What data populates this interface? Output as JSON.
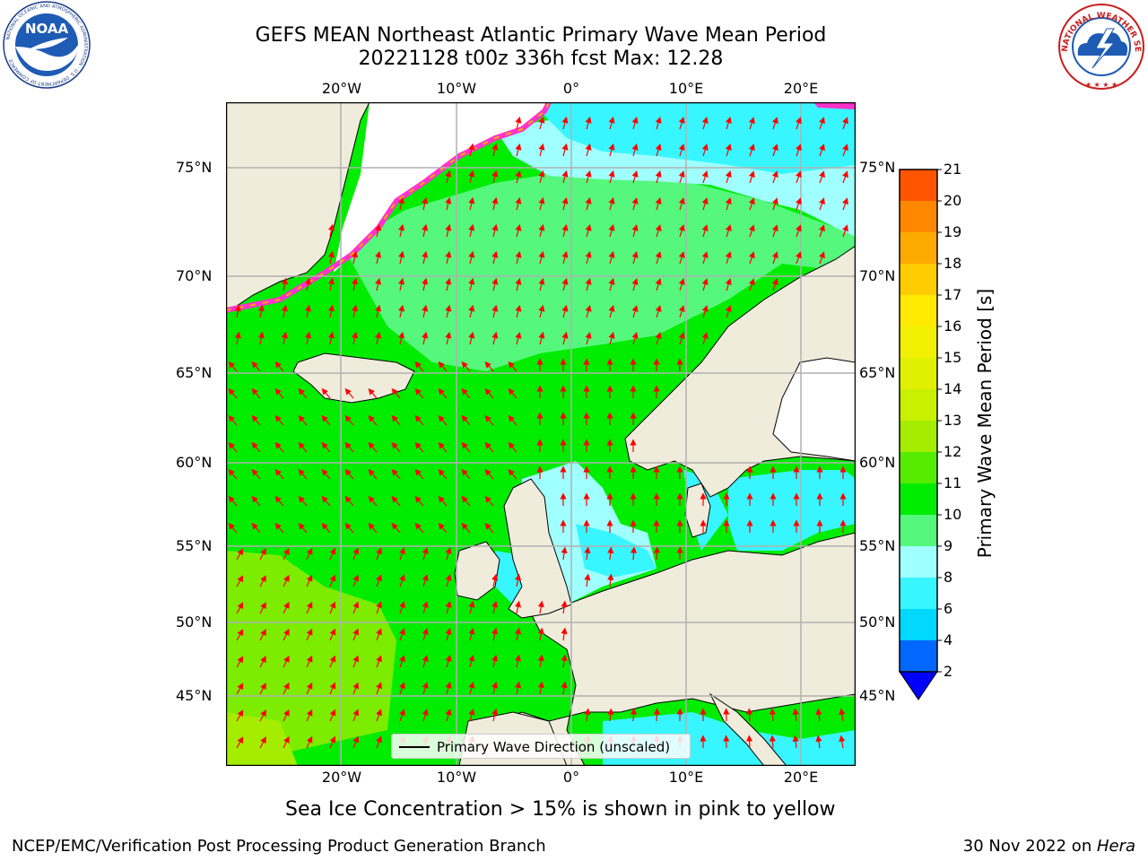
{
  "header": {
    "title_line1": "GEFS MEAN Northeast Atlantic Primary Wave Mean Period",
    "title_line2": "20221128 t00z 336h fcst   Max: 12.28"
  },
  "logos": {
    "noaa": "NOAA",
    "noaa_ring": "NATIONAL OCEANIC AND ATMOSPHERIC ADMINISTRATION · U.S. DEPARTMENT OF COMMERCE",
    "nws_ring": "NATIONAL WEATHER SERVICE"
  },
  "map": {
    "lon_labels": [
      "20°W",
      "10°W",
      "0°",
      "10°E",
      "20°E"
    ],
    "lat_labels": [
      "75°N",
      "70°N",
      "65°N",
      "60°N",
      "55°N",
      "50°N",
      "45°N"
    ],
    "colors": {
      "land": "#efecdc",
      "ice_free_white": "#ffffff",
      "grid": "#b0b0b0",
      "arrow": "#ff0000",
      "coast": "#000000"
    }
  },
  "colorbar": {
    "label": "Primary Wave Mean Period [s]",
    "ticks": [
      "21",
      "20",
      "19",
      "18",
      "17",
      "16",
      "15",
      "14",
      "13",
      "12",
      "11",
      "10",
      "9",
      "8",
      "6",
      "4",
      "2"
    ],
    "colors_bottom_to_top": [
      "#0067ff",
      "#00d8ff",
      "#38f6ff",
      "#a0ffff",
      "#55f77d",
      "#00ec00",
      "#55ec00",
      "#a4ec00",
      "#c8f000",
      "#e0f000",
      "#f0f000",
      "#ffea00",
      "#ffcc00",
      "#ffaa00",
      "#ff8800",
      "#ff5500",
      "#ff2200",
      "#ff0000"
    ],
    "underflow_color": "#0000ff"
  },
  "legend": {
    "label": "Primary Wave Direction (unscaled)"
  },
  "caption": "Sea Ice Concentration > 15% is shown in pink to yellow",
  "footer": {
    "left": "NCEP/EMC/Verification Post Processing Product Generation Branch",
    "right_date": "30 Nov 2022 on ",
    "right_host": "Hera"
  }
}
